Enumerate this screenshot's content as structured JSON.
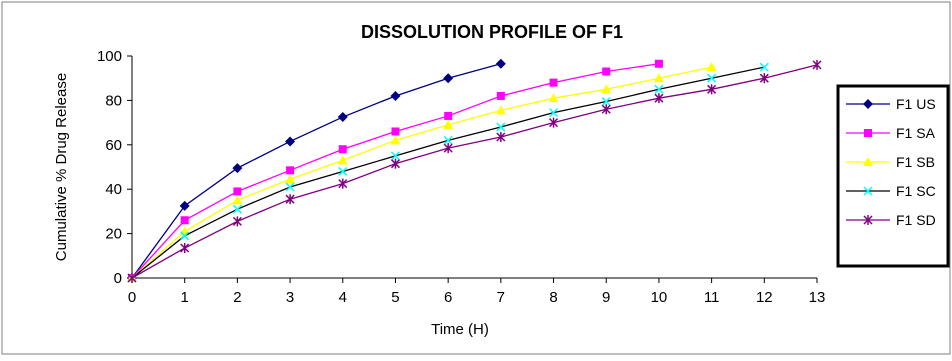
{
  "chart_data": {
    "type": "line",
    "title": "DISSOLUTION PROFILE OF F1",
    "xlabel": "Time (H)",
    "ylabel": "Cumulative % Drug Release",
    "xlim": [
      0,
      13
    ],
    "ylim": [
      0,
      100
    ],
    "x_ticks": [
      "0",
      "1",
      "2",
      "3",
      "4",
      "5",
      "6",
      "7",
      "8",
      "9",
      "10",
      "11",
      "12",
      "13"
    ],
    "y_ticks": [
      "0",
      "20",
      "40",
      "60",
      "80",
      "100"
    ],
    "grid": false,
    "legend_position": "right",
    "series": [
      {
        "name": "F1 US",
        "color": "#000080",
        "marker": "diamond",
        "x": [
          0,
          1,
          2,
          3,
          4,
          5,
          6,
          7
        ],
        "y": [
          0,
          32.5,
          49.5,
          61.5,
          72.5,
          82,
          90,
          96.5
        ]
      },
      {
        "name": "F1 SA",
        "color": "#ff00ff",
        "marker": "square",
        "x": [
          0,
          1,
          2,
          3,
          4,
          5,
          6,
          7,
          8,
          9,
          10
        ],
        "y": [
          0,
          26,
          39,
          48.5,
          58,
          66,
          73,
          82,
          88,
          93,
          96.5
        ]
      },
      {
        "name": "F1 SB",
        "color": "#ffff00",
        "marker": "triangle",
        "x": [
          0,
          1,
          2,
          3,
          4,
          5,
          6,
          7,
          8,
          9,
          10,
          11
        ],
        "y": [
          0,
          21,
          35,
          44.5,
          53,
          62,
          69,
          75.5,
          81,
          85,
          90,
          95
        ]
      },
      {
        "name": "F1 SC",
        "color": "#00ffff",
        "line_color": "#000000",
        "marker": "x",
        "x": [
          0,
          1,
          2,
          3,
          4,
          5,
          6,
          7,
          8,
          9,
          10,
          11,
          12
        ],
        "y": [
          0,
          19,
          31,
          41,
          48,
          55,
          62,
          68,
          74.5,
          79.5,
          85,
          90,
          95
        ]
      },
      {
        "name": "F1 SD",
        "color": "#800080",
        "marker": "star",
        "x": [
          0,
          1,
          2,
          3,
          4,
          5,
          6,
          7,
          8,
          9,
          10,
          11,
          12,
          13
        ],
        "y": [
          0,
          13.5,
          25.5,
          35.5,
          42.5,
          51.5,
          58.5,
          63.5,
          70,
          76,
          81,
          85,
          90,
          96
        ]
      }
    ]
  }
}
